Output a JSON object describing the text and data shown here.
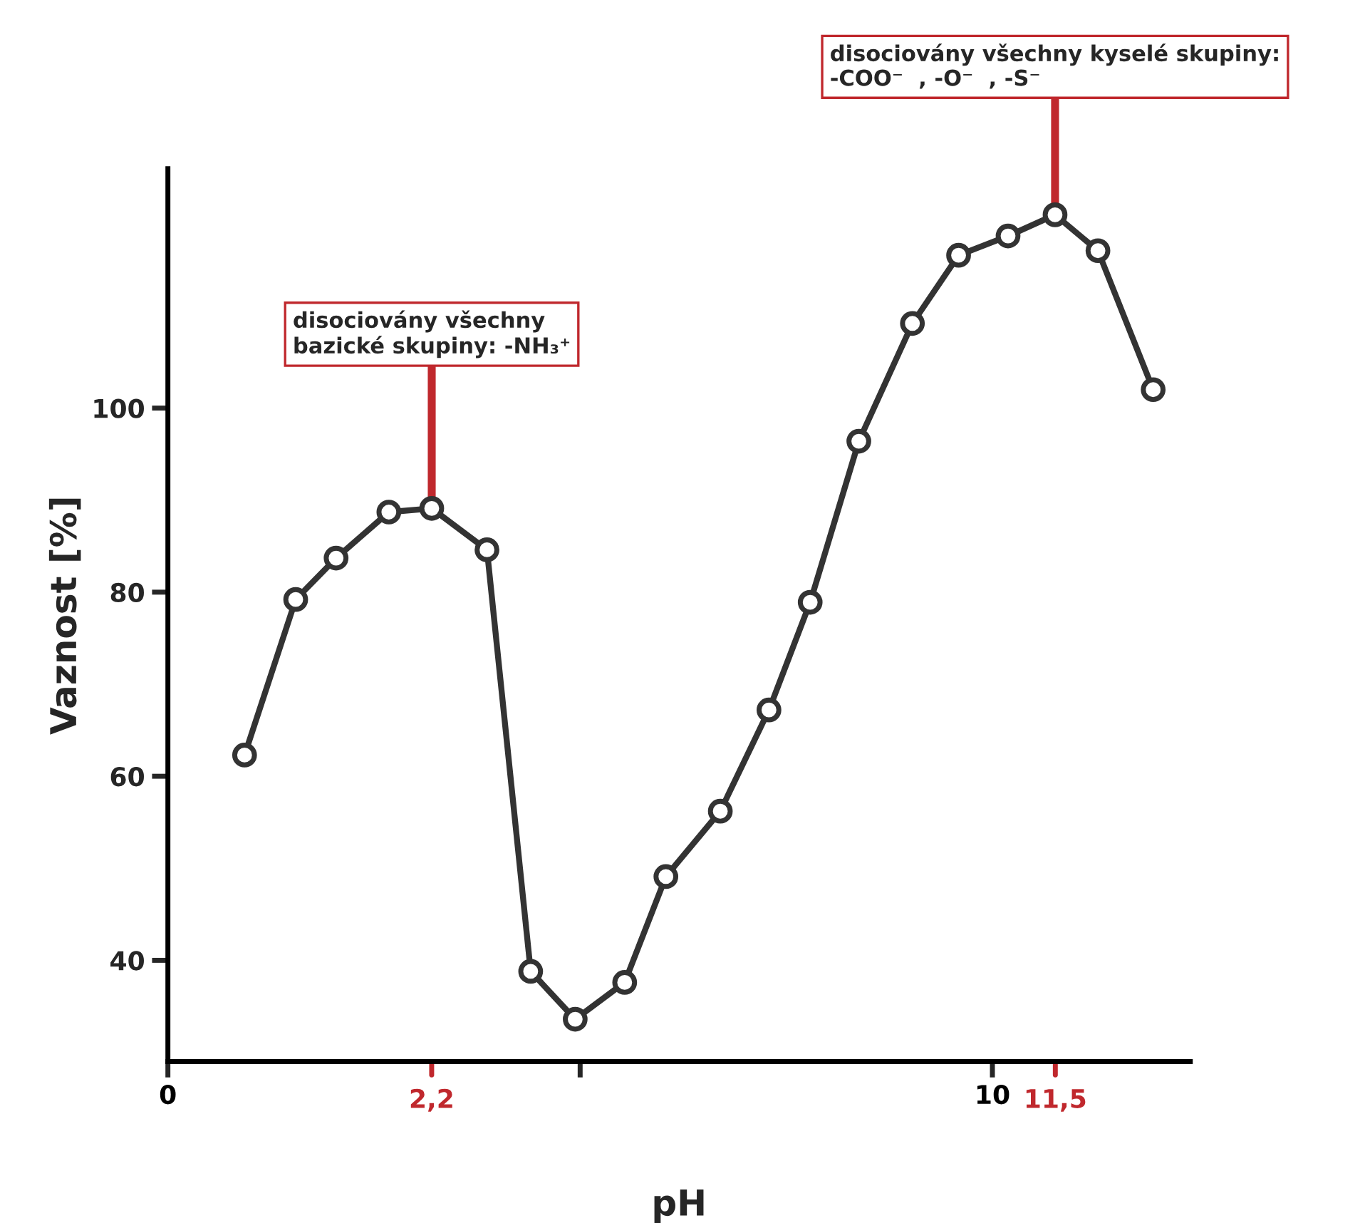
{
  "chart_data": {
    "type": "line",
    "xlabel": "pH",
    "ylabel": "Vaznost [%]",
    "x": [
      0.93,
      1.55,
      2.04,
      2.68,
      3.2,
      3.87,
      4.4,
      4.94,
      5.54,
      6.04,
      6.7,
      7.29,
      7.79,
      8.38,
      9.03,
      9.59,
      10.19,
      10.76,
      11.28,
      11.95
    ],
    "series": [
      {
        "color": "#333333",
        "values": [
          62.3,
          79.2,
          83.7,
          88.7,
          89.1,
          84.6,
          38.8,
          33.6,
          37.6,
          49.1,
          56.2,
          67.2,
          78.9,
          96.4,
          109.2,
          116.6,
          118.7,
          121.0,
          117.1,
          102.0
        ]
      }
    ],
    "xlim": [
      0,
      12.4
    ],
    "ylim": [
      29,
      126
    ],
    "xticks": [
      0,
      {
        "value": 5,
        "label": null
      },
      10
    ],
    "yticks": [
      40,
      60,
      80,
      100
    ],
    "annotations": [
      {
        "text": "disociovány všechny\nbazické skupiny: -NH₃⁺",
        "x": 3.2,
        "y": 89.1
      },
      {
        "text": "disociovány všechny kyselé skupiny:\n-COO⁻  , -O⁻  , -S⁻",
        "x": 10.76,
        "y": 121.0
      },
      "2,2",
      "11,5"
    ],
    "marker": "circle",
    "line_style": "solid",
    "grid": false,
    "legend": false
  }
}
